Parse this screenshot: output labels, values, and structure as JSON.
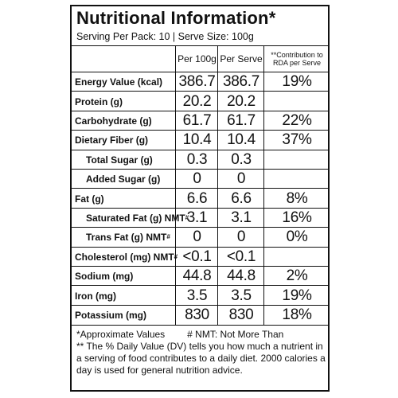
{
  "title": "Nutritional Information*",
  "serving": "Serving Per Pack: 10 | Serve Size: 100g",
  "headers": {
    "per100": "Per 100g",
    "perServe": "Per Serve",
    "rda_line1": "**Contribution to",
    "rda_line2": "RDA per Serve"
  },
  "rows": [
    {
      "label": "Energy Value (kcal)",
      "per100": "386.7",
      "perServe": "386.7",
      "rda": "19%"
    },
    {
      "label": "Protein (g)",
      "per100": "20.2",
      "perServe": "20.2",
      "rda": ""
    },
    {
      "label": "Carbohydrate (g)",
      "per100": "61.7",
      "perServe": "61.7",
      "rda": "22%"
    },
    {
      "label": "Dietary Fiber (g)",
      "per100": "10.4",
      "perServe": "10.4",
      "rda": "37%"
    },
    {
      "label": "Total Sugar (g)",
      "per100": "0.3",
      "perServe": "0.3",
      "rda": ""
    },
    {
      "label": "Added Sugar (g)",
      "per100": "0",
      "perServe": "0",
      "rda": ""
    },
    {
      "label": "Fat (g)",
      "per100": "6.6",
      "perServe": "6.6",
      "rda": "8%"
    },
    {
      "label": "Saturated Fat (g) NMT",
      "sup": "#",
      "per100": "3.1",
      "perServe": "3.1",
      "rda": "16%"
    },
    {
      "label": "Trans Fat (g) NMT",
      "sup": "#",
      "per100": "0",
      "perServe": "0",
      "rda": "0%"
    },
    {
      "label": "Cholesterol (mg) NMT",
      "sup": "#",
      "per100": "<0.1",
      "perServe": "<0.1",
      "rda": ""
    },
    {
      "label": "Sodium (mg)",
      "per100": "44.8",
      "perServe": "44.8",
      "rda": "2%"
    },
    {
      "label": "Iron (mg)",
      "per100": "3.5",
      "perServe": "3.5",
      "rda": "19%"
    },
    {
      "label": "Potassium (mg)",
      "per100": "830",
      "perServe": "830",
      "rda": "18%"
    }
  ],
  "footer": {
    "approx": "*Approximate Values",
    "nmt": "# NMT: Not More Than",
    "note": "** The % Daily Value (DV) tells you how much a nutrient in a serving of food contributes to a daily diet. 2000 calories a day is used for general nutrition advice."
  }
}
